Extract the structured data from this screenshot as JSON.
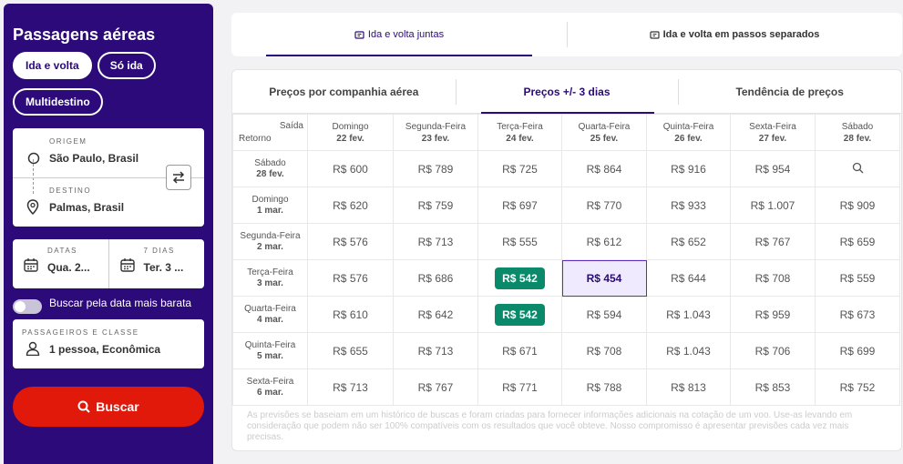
{
  "sidebar": {
    "title": "Passagens aéreas",
    "trip_types": [
      "Ida e volta",
      "Só ida",
      "Multidestino"
    ],
    "origin_label": "ORIGEM",
    "origin_value": "São Paulo, Brasil",
    "destination_label": "DESTINO",
    "destination_value": "Palmas, Brasil",
    "dates_label": "DATAS",
    "dates_value": "Qua. 2...",
    "days_label": "7 DIAS",
    "days_value": "Ter. 3 ...",
    "cheapest_toggle_label": "Buscar pela data mais barata",
    "pax_label": "PASSAGEIROS E CLASSE",
    "pax_value": "1 pessoa, Econômica",
    "search_button": "Buscar"
  },
  "top_tabs": [
    "Ida e volta juntas",
    "Ida e volta em passos separados"
  ],
  "sub_tabs": [
    "Preços por companhia aérea",
    "Preços +/- 3 dias",
    "Tendência de preços"
  ],
  "grid": {
    "corner_top": "Saída",
    "corner_bottom": "Retorno",
    "columns": [
      {
        "day": "Domingo",
        "date": "22 fev."
      },
      {
        "day": "Segunda-Feira",
        "date": "23 fev."
      },
      {
        "day": "Terça-Feira",
        "date": "24 fev."
      },
      {
        "day": "Quarta-Feira",
        "date": "25 fev."
      },
      {
        "day": "Quinta-Feira",
        "date": "26 fev."
      },
      {
        "day": "Sexta-Feira",
        "date": "27 fev."
      },
      {
        "day": "Sábado",
        "date": "28 fev."
      }
    ],
    "rows": [
      {
        "day": "Sábado",
        "date": "28 fev.",
        "prices": [
          "R$ 600",
          "R$ 789",
          "R$ 725",
          "R$ 864",
          "R$ 916",
          "R$ 954",
          ""
        ]
      },
      {
        "day": "Domingo",
        "date": "1 mar.",
        "prices": [
          "R$ 620",
          "R$ 759",
          "R$ 697",
          "R$ 770",
          "R$ 933",
          "R$ 1.007",
          "R$ 909"
        ]
      },
      {
        "day": "Segunda-Feira",
        "date": "2 mar.",
        "prices": [
          "R$ 576",
          "R$ 713",
          "R$ 555",
          "R$ 612",
          "R$ 652",
          "R$ 767",
          "R$ 659"
        ]
      },
      {
        "day": "Terça-Feira",
        "date": "3 mar.",
        "prices": [
          "R$ 576",
          "R$ 686",
          "R$ 542",
          "R$ 454",
          "R$ 644",
          "R$ 708",
          "R$ 559"
        ]
      },
      {
        "day": "Quarta-Feira",
        "date": "4 mar.",
        "prices": [
          "R$ 610",
          "R$ 642",
          "R$ 542",
          "R$ 594",
          "R$ 1.043",
          "R$ 959",
          "R$ 673"
        ]
      },
      {
        "day": "Quinta-Feira",
        "date": "5 mar.",
        "prices": [
          "R$ 655",
          "R$ 713",
          "R$ 671",
          "R$ 708",
          "R$ 1.043",
          "R$ 706",
          "R$ 699"
        ]
      },
      {
        "day": "Sexta-Feira",
        "date": "6 mar.",
        "prices": [
          "R$ 713",
          "R$ 767",
          "R$ 771",
          "R$ 788",
          "R$ 813",
          "R$ 853",
          "R$ 752"
        ]
      }
    ],
    "highlight_green": [
      [
        3,
        2
      ],
      [
        4,
        2
      ]
    ],
    "selected": [
      3,
      3
    ],
    "search_cell": [
      0,
      6
    ]
  },
  "disclaimer": "As previsões se baseiam em um histórico de buscas e foram criadas para fornecer informações adicionais na cotação de um voo. Use-as levando em consideração que podem não ser 100% compatíveis com os resultados que você obteve. Nosso compromisso é apresentar previsões cada vez mais precisas.",
  "colors": {
    "brand": "#2c0a7a",
    "search": "#e0190b",
    "cheap": "#0a8a6a"
  }
}
